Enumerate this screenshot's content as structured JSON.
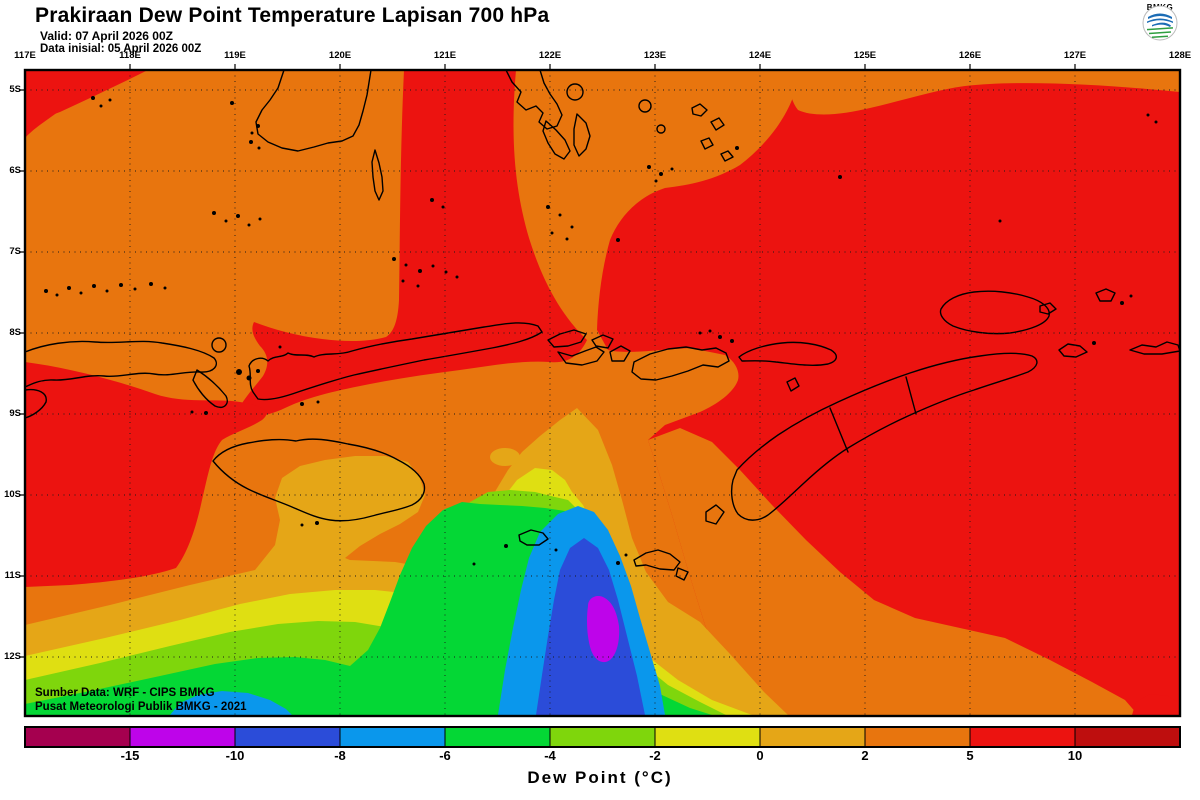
{
  "header": {
    "title": "Prakiraan Dew Point Temperature Lapisan 700 hPa",
    "valid": "Valid: 07 April 2026 00Z",
    "initial": "Data inisial: 05 April 2026 00Z"
  },
  "logo": {
    "label": "BMKG"
  },
  "axes": {
    "lon": [
      "117E",
      "118E",
      "119E",
      "120E",
      "121E",
      "122E",
      "123E",
      "124E",
      "125E",
      "126E",
      "127E",
      "128E"
    ],
    "lat": [
      "5S",
      "6S",
      "7S",
      "8S",
      "9S",
      "10S",
      "11S",
      "12S"
    ]
  },
  "colorbar": {
    "title": "Dew Point (°C)",
    "ticks": [
      "-15",
      "-10",
      "-8",
      "-6",
      "-4",
      "-2",
      "0",
      "2",
      "5",
      "10"
    ],
    "segments": [
      "maroon",
      "magenta",
      "blue",
      "lightblue",
      "green",
      "yellowgreen",
      "yellow",
      "gold",
      "orange",
      "red",
      "darkred"
    ]
  },
  "palette": {
    "maroon": "#A5004F",
    "magenta": "#BE04EA",
    "blue": "#2B4CD9",
    "lightblue": "#0A97EC",
    "green": "#04D735",
    "yellowgreen": "#7FD60C",
    "yellow": "#DFDF12",
    "gold": "#E5A617",
    "orange": "#E8750E",
    "red": "#EC1310",
    "darkred": "#BE0E0E"
  },
  "credits": {
    "line1": "Sumber Data: WRF - CIPS BMKG",
    "line2": "Pusat Meteorologi Publik BMKG - 2021"
  }
}
